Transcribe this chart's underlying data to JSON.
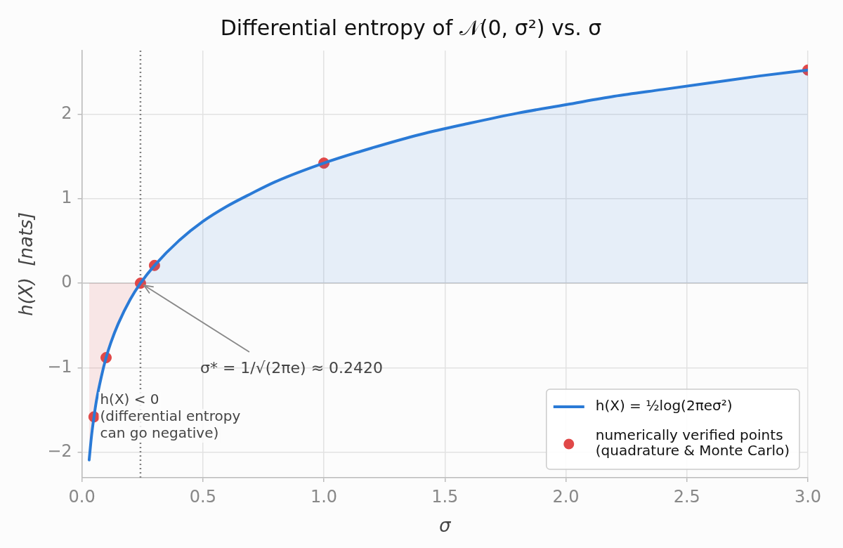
{
  "chart_data": {
    "type": "area",
    "title": "Differential entropy of 𝒩(0, σ²) vs. σ",
    "xlabel": "σ",
    "ylabel": "h(X)  [nats]",
    "xlim": [
      0,
      3
    ],
    "xticks": [
      {
        "value": 0,
        "label": "0.0"
      },
      {
        "value": 0.5,
        "label": "0.5"
      },
      {
        "value": 1,
        "label": "1.0"
      },
      {
        "value": 1.5,
        "label": "1.5"
      },
      {
        "value": 2,
        "label": "2.0"
      },
      {
        "value": 2.5,
        "label": "2.5"
      },
      {
        "value": 3,
        "label": "3.0"
      }
    ],
    "ylim": [
      -2.3,
      2.75
    ],
    "yticks": [
      {
        "value": -2,
        "label": "−2"
      },
      {
        "value": -1,
        "label": "−1"
      },
      0,
      1,
      2
    ],
    "grid": true,
    "legend": "bottom right",
    "series": [
      {
        "name": "h(X) = ½log(2πeσ²)",
        "color": "#2a7ad6",
        "marker": "none",
        "x": [
          0.03,
          0.04,
          0.05,
          0.06,
          0.08,
          0.1,
          0.12,
          0.15,
          0.2,
          0.242,
          0.3,
          0.4,
          0.5,
          0.6,
          0.7,
          0.8,
          1.0,
          1.2,
          1.4,
          1.6,
          1.8,
          2.0,
          2.2,
          2.4,
          2.6,
          2.8,
          3.0
        ],
        "values": [
          -2.09,
          -1.8,
          -1.58,
          -1.39,
          -1.11,
          -0.88,
          -0.7,
          -0.48,
          -0.19,
          0.0,
          0.21,
          0.5,
          0.73,
          0.91,
          1.06,
          1.2,
          1.42,
          1.6,
          1.76,
          1.89,
          2.01,
          2.11,
          2.21,
          2.29,
          2.37,
          2.45,
          2.52
        ]
      },
      {
        "name": "numerically verified points\n(quadrature & Monte Carlo)",
        "type": "scatter",
        "color": "#e04848",
        "marker": "circle",
        "x": [
          0.05,
          0.1,
          0.242,
          0.3,
          1.0,
          3.0
        ],
        "values": [
          -1.58,
          -0.88,
          0.0,
          0.21,
          1.42,
          2.52
        ]
      }
    ],
    "ref_lines": [
      {
        "axis": "x",
        "value": 0.242,
        "color": "#808080",
        "line_style": "dotted"
      }
    ],
    "annotations": [
      {
        "text": "σ* = 1/√(2πe) ≈ 0.2420",
        "x": 0.242,
        "y": 0
      },
      "h(X) < 0\n(differential entropy\ncan go negative)"
    ]
  }
}
